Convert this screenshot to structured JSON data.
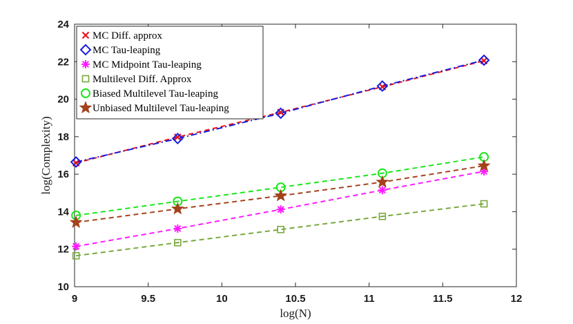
{
  "chart_data": {
    "type": "line",
    "title": "",
    "xlabel": "log(N)",
    "ylabel": "log(Complexity)",
    "xlim": [
      9,
      12
    ],
    "ylim": [
      10,
      24
    ],
    "xticks": [
      9,
      9.5,
      10,
      10.5,
      11,
      11.5,
      12
    ],
    "xtick_labels": [
      "9",
      "9.5",
      "10",
      "10.5",
      "11",
      "11.5",
      "12"
    ],
    "yticks": [
      10,
      12,
      14,
      16,
      18,
      20,
      22,
      24
    ],
    "ytick_labels": [
      "10",
      "12",
      "14",
      "16",
      "18",
      "20",
      "22",
      "24"
    ],
    "grid": false,
    "legend_position": "top-left",
    "x": [
      9.01,
      9.7,
      10.4,
      11.09,
      11.78
    ],
    "series": [
      {
        "name": "MC Diff. approx",
        "marker": "x",
        "color": "#e8141b",
        "line": "dashed",
        "values": [
          16.6,
          17.98,
          19.3,
          20.66,
          22.05
        ]
      },
      {
        "name": "MC Tau-leaping",
        "marker": "diamond",
        "color": "#1a1adb",
        "line": "dashdot",
        "values": [
          16.65,
          17.9,
          19.25,
          20.7,
          22.08
        ]
      },
      {
        "name": "MC Midpoint Tau-leaping",
        "marker": "asterisk",
        "color": "#ff19ff",
        "line": "dashed",
        "values": [
          12.15,
          13.1,
          14.12,
          15.15,
          16.15
        ]
      },
      {
        "name": "Multilevel Diff. Approx",
        "marker": "square",
        "color": "#78a83c",
        "line": "dashed",
        "values": [
          11.65,
          12.35,
          13.05,
          13.75,
          14.42
        ]
      },
      {
        "name": "Biased Multilevel Tau-leaping",
        "marker": "circle",
        "color": "#19e619",
        "line": "dashed",
        "values": [
          13.8,
          14.55,
          15.3,
          16.05,
          16.92
        ]
      },
      {
        "name": "Unbiased Multilevel Tau-leaping",
        "marker": "star",
        "color": "#a3421c",
        "line": "dashed",
        "values": [
          13.43,
          14.15,
          14.85,
          15.58,
          16.45
        ]
      }
    ]
  }
}
